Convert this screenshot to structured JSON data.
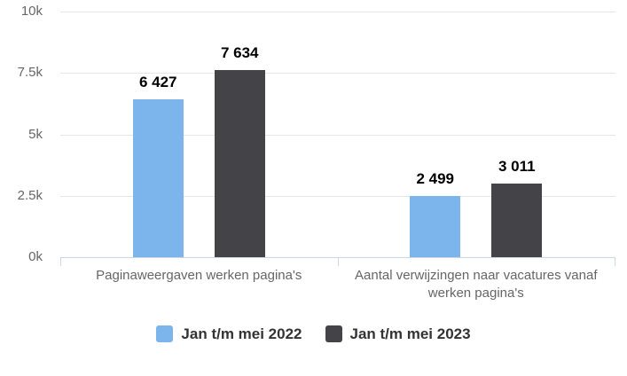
{
  "chart_data": {
    "type": "bar",
    "title": "",
    "xlabel": "",
    "ylabel": "",
    "categories": [
      "Paginaweergaven werken pagina's",
      "Aantal verwijzingen naar vacatures vanaf werken pagina's"
    ],
    "series": [
      {
        "name": "Jan t/m mei 2022",
        "color": "#7cb5ec",
        "values": [
          6427,
          2499
        ]
      },
      {
        "name": "Jan t/m mei 2023",
        "color": "#434348",
        "values": [
          7634,
          3011
        ]
      }
    ],
    "data_labels": [
      [
        "6 427",
        "2 499"
      ],
      [
        "7 634",
        "3 011"
      ]
    ],
    "yticks": [
      {
        "value": 0,
        "label": "0k"
      },
      {
        "value": 2500,
        "label": "2.5k"
      },
      {
        "value": 5000,
        "label": "5k"
      },
      {
        "value": 7500,
        "label": "7.5k"
      },
      {
        "value": 10000,
        "label": "10k"
      }
    ],
    "ylim": [
      0,
      10000
    ],
    "grid": true,
    "legend_position": "bottom"
  },
  "colors": {
    "background": "#ffffff",
    "gridline": "#e6e6e6",
    "axis_line": "#ccd6eb",
    "tick_label": "#666666",
    "data_label": "#000000",
    "legend_text": "#333333"
  }
}
